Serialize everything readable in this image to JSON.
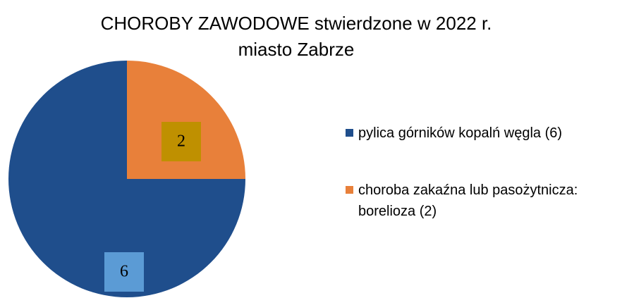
{
  "chart_data": {
    "type": "pie",
    "title": "CHOROBY ZAWODOWE stwierdzone w 2022 r.",
    "subtitle": "miasto Zabrze",
    "categories": [
      "pylica górników kopalń węgla (6)",
      "choroba zakaźna lub pasożytnicza: borelioza (2)"
    ],
    "values": [
      6,
      2
    ],
    "colors": [
      "#1f4e8c",
      "#e8803a"
    ],
    "legend": "right"
  }
}
